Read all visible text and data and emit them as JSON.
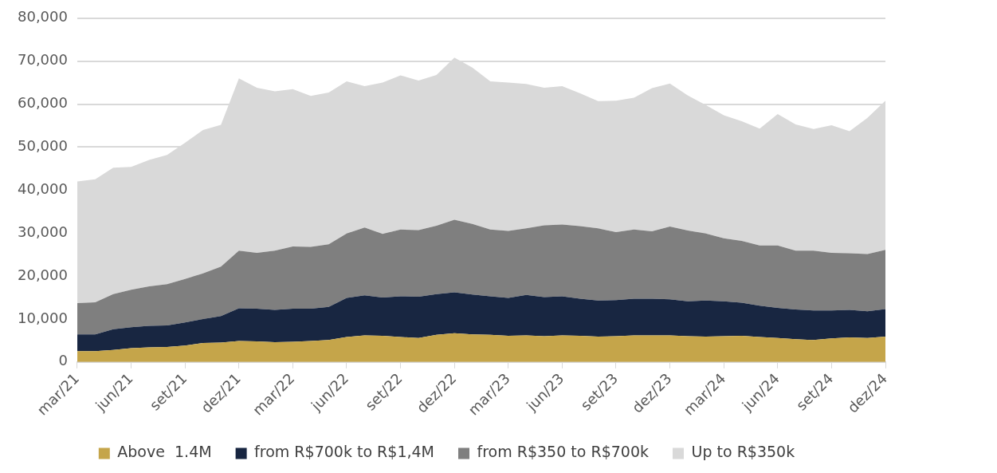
{
  "chart_data": {
    "type": "area",
    "stacked": true,
    "categories": [
      "mar/21",
      null,
      null,
      "jun/21",
      null,
      null,
      "set/21",
      null,
      null,
      "dez/21",
      null,
      null,
      "mar/22",
      null,
      null,
      "jun/22",
      null,
      null,
      "set/22",
      null,
      null,
      "dez/22",
      null,
      null,
      "mar/23",
      null,
      null,
      "jun/23",
      null,
      null,
      "set/23",
      null,
      null,
      "dez/23",
      null,
      null,
      "mar/24",
      null,
      null,
      "jun/24",
      null,
      null,
      "set/24",
      null,
      null,
      "dez/24"
    ],
    "series": [
      {
        "name": "Above  1.4M",
        "color": "#c5a54a",
        "values": [
          2500,
          2500,
          2800,
          3200,
          3400,
          3500,
          3800,
          4400,
          4500,
          4900,
          4800,
          4600,
          4700,
          4900,
          5100,
          5800,
          6200,
          6100,
          5800,
          5600,
          6300,
          6700,
          6400,
          6300,
          6100,
          6200,
          6000,
          6200,
          6100,
          5900,
          6000,
          6200,
          6200,
          6200,
          6000,
          5900,
          6000,
          6100,
          5800,
          5600,
          5300,
          5100,
          5500,
          5700,
          5600,
          5900
        ]
      },
      {
        "name": "from R$700k to R$1,4M",
        "color": "#182641",
        "values": [
          3900,
          3900,
          4800,
          4900,
          5000,
          5000,
          5400,
          5600,
          6200,
          7600,
          7600,
          7500,
          7700,
          7500,
          7700,
          9100,
          9300,
          8900,
          9500,
          9600,
          9500,
          9500,
          9300,
          9000,
          8800,
          9400,
          9100,
          9100,
          8600,
          8400,
          8400,
          8500,
          8500,
          8400,
          8100,
          8400,
          8100,
          7700,
          7300,
          7000,
          6900,
          6900,
          6500,
          6400,
          6200,
          6400
        ]
      },
      {
        "name": "from R$350 to R$700k",
        "color": "#7f7f7f",
        "values": [
          7300,
          7500,
          8200,
          8700,
          9200,
          9600,
          10100,
          10600,
          11500,
          13400,
          13000,
          13800,
          14500,
          14400,
          14600,
          15000,
          15800,
          14800,
          15500,
          15500,
          15900,
          16900,
          16400,
          15500,
          15600,
          15500,
          16700,
          16700,
          16900,
          16800,
          15800,
          16100,
          15700,
          16900,
          16500,
          15600,
          14700,
          14400,
          14000,
          14500,
          13700,
          13900,
          13400,
          13200,
          13300,
          13800
        ]
      },
      {
        "name": "Up to R$350k",
        "color": "#d9d9d9",
        "values": [
          28300,
          28600,
          29400,
          28600,
          29400,
          30100,
          31700,
          33400,
          33000,
          40100,
          38400,
          37100,
          36600,
          35100,
          35300,
          35400,
          32900,
          35200,
          35900,
          34800,
          35100,
          37700,
          36400,
          34500,
          34500,
          33600,
          32000,
          32200,
          30900,
          29600,
          30600,
          30700,
          33300,
          33300,
          31400,
          29900,
          28600,
          27800,
          27200,
          30600,
          29400,
          28300,
          29700,
          28400,
          31700,
          34700
        ]
      }
    ],
    "ylim": [
      0,
      80000
    ],
    "yticks": [
      0,
      {
        "value": 10000,
        "label": "10,000"
      },
      {
        "value": 20000,
        "label": "20,000"
      },
      {
        "value": 30000,
        "label": "30,000"
      },
      {
        "value": 40000,
        "label": "40,000"
      },
      {
        "value": 50000,
        "label": "50,000"
      },
      {
        "value": 60000,
        "label": "60,000"
      },
      {
        "value": 70000,
        "label": "70,000"
      },
      {
        "value": 80000,
        "label": "80,000"
      }
    ],
    "grid": "y",
    "legend": "bottom"
  }
}
